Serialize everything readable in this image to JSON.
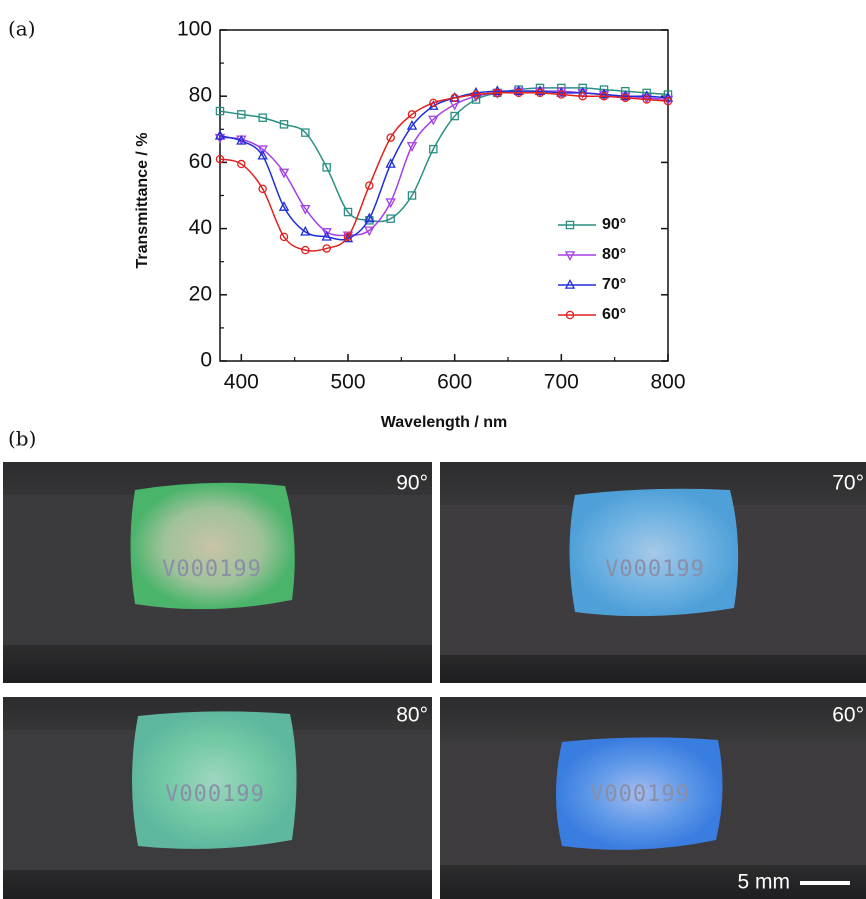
{
  "chart_data": {
    "type": "line",
    "x_label": "Wavelength / nm",
    "y_label": "Transmittance / %",
    "x": [
      380,
      400,
      420,
      440,
      460,
      480,
      500,
      520,
      540,
      560,
      580,
      600,
      620,
      640,
      660,
      680,
      700,
      720,
      740,
      760,
      780,
      800
    ],
    "xlim": [
      380,
      800
    ],
    "xticks": [
      400,
      500,
      600,
      700,
      800
    ],
    "ylim": [
      0,
      100
    ],
    "yticks": [
      0,
      20,
      40,
      60,
      80,
      100
    ],
    "legend": "lower right",
    "series": [
      {
        "name": "90°",
        "color": "#2a8f82",
        "marker": "square",
        "values": [
          75.5,
          74.5,
          73.5,
          71.5,
          69,
          58.5,
          45,
          42.5,
          43,
          50,
          64,
          74,
          79,
          81,
          82,
          82.5,
          82.5,
          82.5,
          82,
          81.5,
          81,
          80.5
        ]
      },
      {
        "name": "80°",
        "color": "#a53ee6",
        "marker": "triangle-down",
        "values": [
          67.5,
          67,
          64,
          57,
          46,
          39,
          38,
          39.5,
          48,
          65,
          73,
          77.5,
          80,
          81,
          81.5,
          81.5,
          81.5,
          81,
          80.5,
          80,
          79.5,
          79
        ]
      },
      {
        "name": "70°",
        "color": "#1f2fd6",
        "marker": "triangle-up",
        "values": [
          68,
          66.5,
          62,
          46.5,
          39,
          37.5,
          37,
          43,
          59.5,
          71,
          77,
          79.5,
          81,
          81.5,
          81.5,
          81.5,
          81,
          81,
          80.5,
          80,
          80,
          79.5
        ]
      },
      {
        "name": "60°",
        "color": "#e0201e",
        "marker": "circle",
        "values": [
          61,
          59.5,
          52,
          37.5,
          33.5,
          34,
          37.5,
          53,
          67.5,
          74.5,
          78,
          79.5,
          80.5,
          81,
          81,
          81,
          80.5,
          80,
          80,
          79.5,
          79,
          78.5
        ]
      }
    ]
  },
  "panel_a_label": "(a)",
  "panel_b": {
    "label": "(b)",
    "photos": [
      "90°",
      "70°",
      "80°",
      "60°"
    ],
    "sample_text": "V000199",
    "scale_bar": "5 mm"
  }
}
